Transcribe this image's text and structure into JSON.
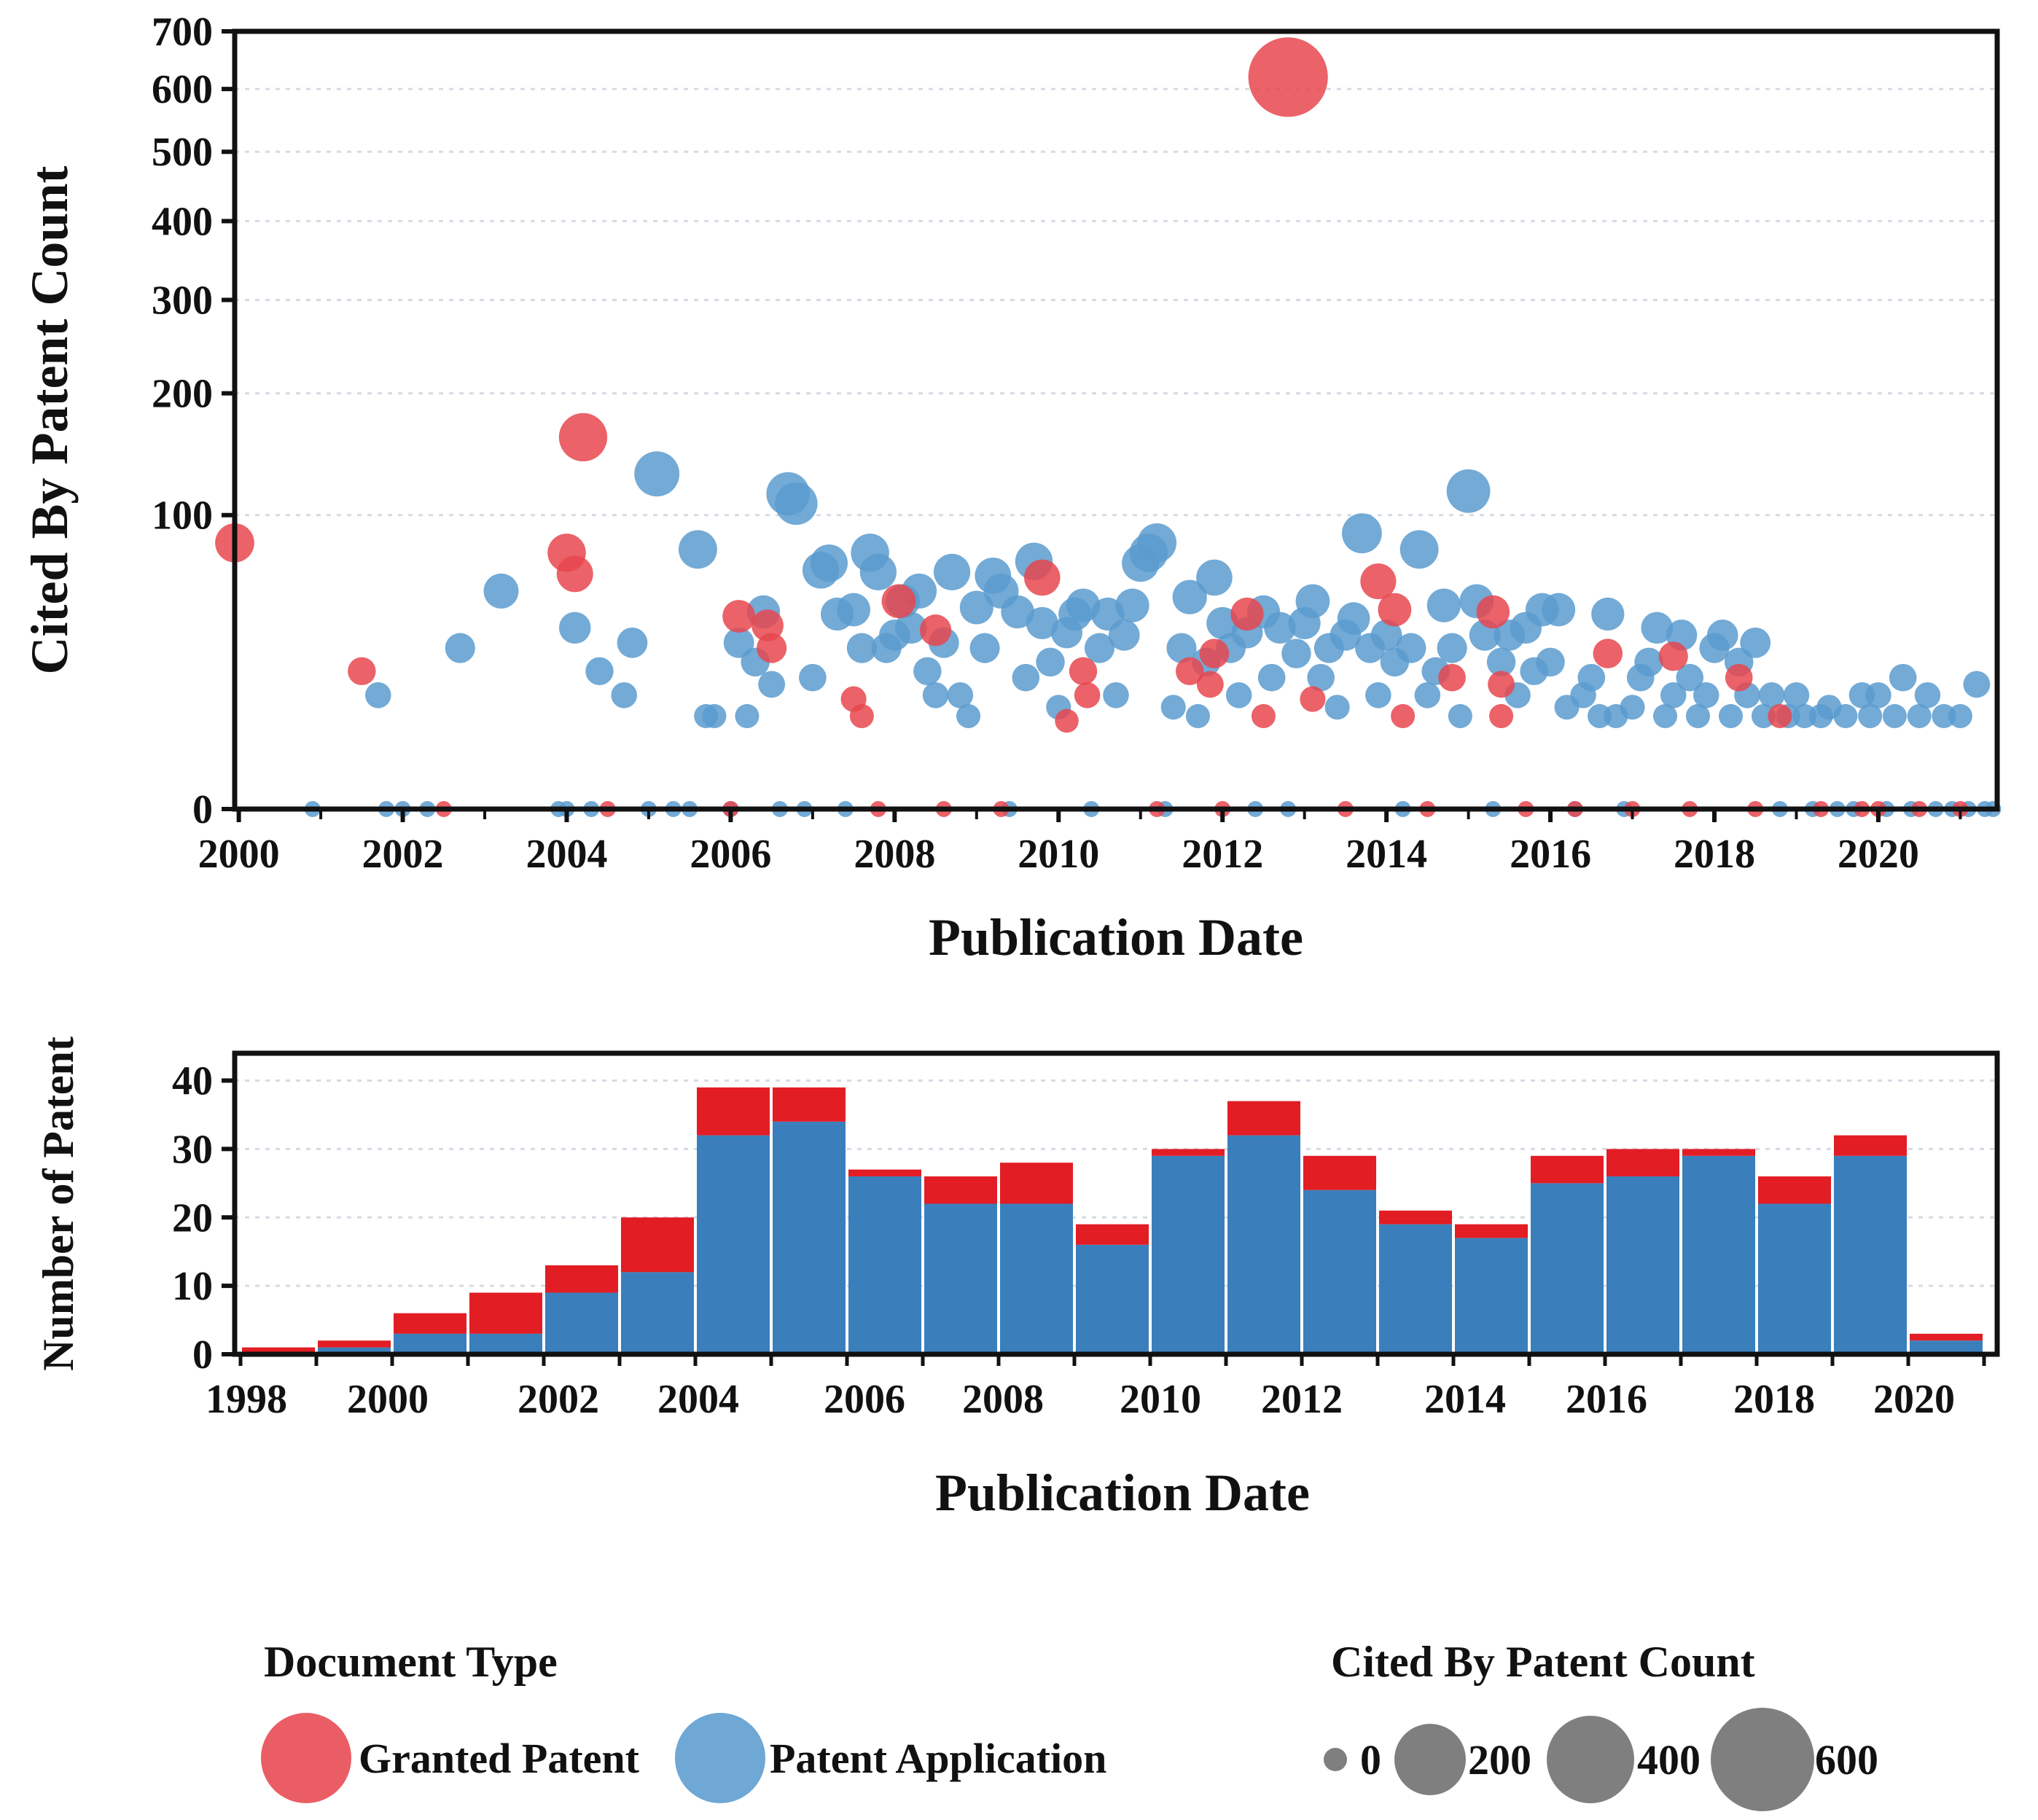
{
  "chart_data": [
    {
      "type": "scatter",
      "xlabel": "Publication Date",
      "ylabel": "Cited By Patent Count",
      "x_ticks": [
        "2000",
        "2002",
        "2004",
        "2006",
        "2008",
        "2010",
        "2012",
        "2014",
        "2016",
        "2018",
        "2020"
      ],
      "y_ticks": [
        "0",
        "100",
        "200",
        "300",
        "400",
        "500",
        "600",
        "700"
      ],
      "xlim": [
        1999.95,
        2021.45
      ],
      "ylim": [
        0,
        700
      ],
      "y_scale": "sqrt",
      "grid": "horizontal dotted",
      "series": [
        {
          "type": "Granted Patent",
          "color": "#e8474f",
          "points": [
            [
              1999.95,
              82
            ],
            [
              2001.5,
              22
            ],
            [
              2004.0,
              76
            ],
            [
              2004.1,
              64
            ],
            [
              2004.2,
              160
            ],
            [
              2006.1,
              43
            ],
            [
              2006.45,
              39
            ],
            [
              2006.5,
              30
            ],
            [
              2007.5,
              14
            ],
            [
              2007.6,
              10
            ],
            [
              2008.05,
              50
            ],
            [
              2008.5,
              37
            ],
            [
              2009.8,
              62
            ],
            [
              2010.1,
              9
            ],
            [
              2010.3,
              22
            ],
            [
              2010.35,
              15
            ],
            [
              2011.6,
              22
            ],
            [
              2011.85,
              18
            ],
            [
              2011.9,
              28
            ],
            [
              2012.3,
              44
            ],
            [
              2012.5,
              10
            ],
            [
              2012.8,
              620
            ],
            [
              2013.1,
              14
            ],
            [
              2013.9,
              60
            ],
            [
              2014.1,
              46
            ],
            [
              2014.2,
              10
            ],
            [
              2014.8,
              20
            ],
            [
              2015.3,
              45
            ],
            [
              2015.4,
              18
            ],
            [
              2015.4,
              10
            ],
            [
              2016.7,
              28
            ],
            [
              2017.5,
              27
            ],
            [
              2018.3,
              20
            ],
            [
              2018.8,
              10
            ],
            [
              2019.3,
              0
            ],
            [
              2020.0,
              0
            ],
            [
              2020.5,
              0
            ],
            [
              2021.0,
              0
            ],
            [
              2002.5,
              0
            ],
            [
              2004.5,
              0
            ],
            [
              2006.0,
              0
            ],
            [
              2007.8,
              0
            ],
            [
              2008.6,
              0
            ],
            [
              2009.3,
              0
            ],
            [
              2011.2,
              0
            ],
            [
              2012.0,
              0
            ],
            [
              2013.5,
              0
            ],
            [
              2014.5,
              0
            ],
            [
              2015.7,
              0
            ],
            [
              2016.3,
              0
            ],
            [
              2017.0,
              0
            ],
            [
              2017.7,
              0
            ],
            [
              2018.5,
              0
            ],
            [
              2019.8,
              0
            ]
          ]
        },
        {
          "type": "Patent Application",
          "color": "#5b9bcf",
          "points": [
            [
              2000.9,
              0
            ],
            [
              2001.7,
              15
            ],
            [
              2001.8,
              0
            ],
            [
              2002.0,
              0
            ],
            [
              2002.3,
              0
            ],
            [
              2002.7,
              30
            ],
            [
              2003.2,
              55
            ],
            [
              2003.9,
              0
            ],
            [
              2004.0,
              0
            ],
            [
              2004.1,
              38
            ],
            [
              2004.3,
              0
            ],
            [
              2004.4,
              22
            ],
            [
              2004.7,
              15
            ],
            [
              2004.8,
              32
            ],
            [
              2005.0,
              0
            ],
            [
              2005.1,
              130
            ],
            [
              2005.3,
              0
            ],
            [
              2005.5,
              0
            ],
            [
              2005.6,
              78
            ],
            [
              2005.7,
              10
            ],
            [
              2005.8,
              10
            ],
            [
              2006.0,
              0
            ],
            [
              2006.1,
              32
            ],
            [
              2006.2,
              10
            ],
            [
              2006.3,
              25
            ],
            [
              2006.4,
              45
            ],
            [
              2006.5,
              18
            ],
            [
              2006.6,
              0
            ],
            [
              2006.7,
              115
            ],
            [
              2006.8,
              108
            ],
            [
              2006.9,
              0
            ],
            [
              2007.0,
              20
            ],
            [
              2007.1,
              66
            ],
            [
              2007.2,
              70
            ],
            [
              2007.3,
              44
            ],
            [
              2007.4,
              0
            ],
            [
              2007.5,
              46
            ],
            [
              2007.6,
              30
            ],
            [
              2007.7,
              76
            ],
            [
              2007.8,
              65
            ],
            [
              2007.9,
              30
            ],
            [
              2008.0,
              35
            ],
            [
              2008.1,
              50
            ],
            [
              2008.2,
              38
            ],
            [
              2008.3,
              55
            ],
            [
              2008.4,
              22
            ],
            [
              2008.5,
              15
            ],
            [
              2008.6,
              32
            ],
            [
              2008.7,
              65
            ],
            [
              2008.8,
              15
            ],
            [
              2008.9,
              10
            ],
            [
              2009.0,
              47
            ],
            [
              2009.1,
              30
            ],
            [
              2009.2,
              63
            ],
            [
              2009.3,
              55
            ],
            [
              2009.4,
              0
            ],
            [
              2009.5,
              45
            ],
            [
              2009.6,
              20
            ],
            [
              2009.7,
              71
            ],
            [
              2009.8,
              40
            ],
            [
              2009.9,
              25
            ],
            [
              2010.0,
              12
            ],
            [
              2010.1,
              36
            ],
            [
              2010.2,
              44
            ],
            [
              2010.3,
              48
            ],
            [
              2010.4,
              0
            ],
            [
              2010.5,
              30
            ],
            [
              2010.6,
              44
            ],
            [
              2010.7,
              15
            ],
            [
              2010.8,
              35
            ],
            [
              2010.9,
              48
            ],
            [
              2011.0,
              70
            ],
            [
              2011.1,
              76
            ],
            [
              2011.2,
              82
            ],
            [
              2011.3,
              0
            ],
            [
              2011.4,
              12
            ],
            [
              2011.5,
              30
            ],
            [
              2011.6,
              52
            ],
            [
              2011.7,
              10
            ],
            [
              2011.8,
              25
            ],
            [
              2011.9,
              62
            ],
            [
              2012.0,
              40
            ],
            [
              2012.1,
              30
            ],
            [
              2012.2,
              15
            ],
            [
              2012.3,
              36
            ],
            [
              2012.4,
              0
            ],
            [
              2012.5,
              45
            ],
            [
              2012.6,
              20
            ],
            [
              2012.7,
              38
            ],
            [
              2012.8,
              0
            ],
            [
              2012.9,
              28
            ],
            [
              2013.0,
              40
            ],
            [
              2013.1,
              50
            ],
            [
              2013.2,
              20
            ],
            [
              2013.3,
              30
            ],
            [
              2013.4,
              12
            ],
            [
              2013.5,
              35
            ],
            [
              2013.6,
              42
            ],
            [
              2013.7,
              88
            ],
            [
              2013.8,
              30
            ],
            [
              2013.9,
              15
            ],
            [
              2014.0,
              35
            ],
            [
              2014.1,
              25
            ],
            [
              2014.2,
              0
            ],
            [
              2014.3,
              30
            ],
            [
              2014.4,
              78
            ],
            [
              2014.5,
              15
            ],
            [
              2014.6,
              22
            ],
            [
              2014.7,
              48
            ],
            [
              2014.8,
              30
            ],
            [
              2014.9,
              10
            ],
            [
              2015.0,
              117
            ],
            [
              2015.1,
              50
            ],
            [
              2015.2,
              35
            ],
            [
              2015.3,
              0
            ],
            [
              2015.4,
              25
            ],
            [
              2015.5,
              35
            ],
            [
              2015.6,
              15
            ],
            [
              2015.7,
              38
            ],
            [
              2015.8,
              22
            ],
            [
              2015.9,
              46
            ],
            [
              2016.0,
              25
            ],
            [
              2016.1,
              46
            ],
            [
              2016.2,
              12
            ],
            [
              2016.3,
              0
            ],
            [
              2016.4,
              15
            ],
            [
              2016.5,
              20
            ],
            [
              2016.6,
              10
            ],
            [
              2016.7,
              44
            ],
            [
              2016.8,
              10
            ],
            [
              2016.9,
              0
            ],
            [
              2017.0,
              12
            ],
            [
              2017.1,
              20
            ],
            [
              2017.2,
              25
            ],
            [
              2017.3,
              38
            ],
            [
              2017.4,
              10
            ],
            [
              2017.5,
              15
            ],
            [
              2017.6,
              35
            ],
            [
              2017.7,
              20
            ],
            [
              2017.8,
              10
            ],
            [
              2017.9,
              15
            ],
            [
              2018.0,
              30
            ],
            [
              2018.1,
              35
            ],
            [
              2018.2,
              10
            ],
            [
              2018.3,
              25
            ],
            [
              2018.4,
              15
            ],
            [
              2018.5,
              32
            ],
            [
              2018.6,
              10
            ],
            [
              2018.7,
              15
            ],
            [
              2018.8,
              0
            ],
            [
              2018.9,
              10
            ],
            [
              2019.0,
              15
            ],
            [
              2019.1,
              10
            ],
            [
              2019.2,
              0
            ],
            [
              2019.3,
              10
            ],
            [
              2019.4,
              12
            ],
            [
              2019.5,
              0
            ],
            [
              2019.6,
              10
            ],
            [
              2019.7,
              0
            ],
            [
              2019.8,
              15
            ],
            [
              2019.9,
              10
            ],
            [
              2020.0,
              15
            ],
            [
              2020.1,
              0
            ],
            [
              2020.2,
              10
            ],
            [
              2020.3,
              20
            ],
            [
              2020.4,
              0
            ],
            [
              2020.5,
              10
            ],
            [
              2020.6,
              15
            ],
            [
              2020.7,
              0
            ],
            [
              2020.8,
              10
            ],
            [
              2020.9,
              0
            ],
            [
              2021.0,
              10
            ],
            [
              2021.1,
              0
            ],
            [
              2021.2,
              18
            ],
            [
              2021.3,
              0
            ],
            [
              2021.4,
              0
            ]
          ]
        }
      ]
    },
    {
      "type": "bar",
      "stacked": true,
      "xlabel": "Publication Date",
      "ylabel": "Number of Patent",
      "x_ticks": [
        "1998",
        "2000",
        "2002",
        "2004",
        "2006",
        "2008",
        "2010",
        "2012",
        "2014",
        "2016",
        "2018",
        "2020"
      ],
      "y_ticks": [
        "0",
        "10",
        "20",
        "30",
        "40"
      ],
      "ylim": [
        0,
        44
      ],
      "grid": "horizontal dotted",
      "categories": [
        "1998",
        "1999",
        "2000",
        "2001",
        "2002",
        "2003",
        "2004",
        "2005",
        "2006",
        "2007",
        "2008",
        "2009",
        "2010",
        "2011",
        "2012",
        "2013",
        "2014",
        "2015",
        "2016",
        "2017",
        "2018",
        "2019",
        "2020"
      ],
      "series": [
        {
          "type": "Patent Application",
          "color": "#3a7fbc",
          "values": [
            0,
            1,
            3,
            3,
            9,
            12,
            32,
            34,
            26,
            22,
            22,
            16,
            29,
            32,
            24,
            19,
            17,
            25,
            26,
            29,
            22,
            29,
            2
          ]
        },
        {
          "type": "Granted Patent",
          "color": "#e21d24",
          "values": [
            1,
            1,
            3,
            6,
            4,
            8,
            7,
            5,
            1,
            4,
            6,
            3,
            1,
            5,
            5,
            2,
            2,
            4,
            4,
            1,
            4,
            3,
            1
          ]
        }
      ]
    }
  ],
  "legend": {
    "document_type": {
      "title": "Document Type",
      "items": [
        {
          "label": "Granted Patent",
          "color": "#e8474f"
        },
        {
          "label": "Patent Application",
          "color": "#5b9bcf"
        }
      ]
    },
    "cited_by": {
      "title": "Cited By Patent Count",
      "color": "#7f7f7f",
      "items": [
        {
          "label": "0",
          "value": 0
        },
        {
          "label": "200",
          "value": 200
        },
        {
          "label": "400",
          "value": 400
        },
        {
          "label": "600",
          "value": 600
        }
      ]
    }
  }
}
